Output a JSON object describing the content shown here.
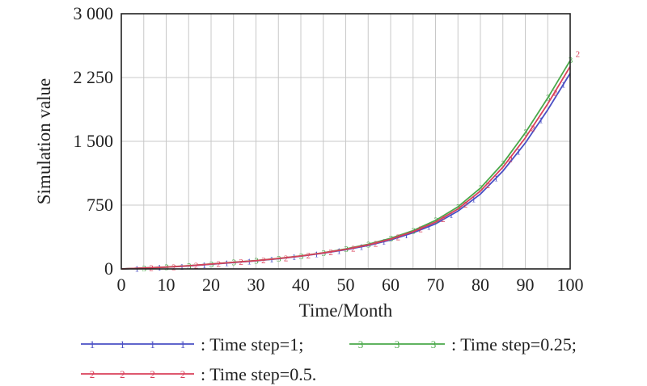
{
  "chart_data": {
    "type": "line",
    "xlabel": "Time/Month",
    "ylabel": "Simulation value",
    "xlim": [
      0,
      100
    ],
    "ylim": [
      0,
      3000
    ],
    "x_ticks": [
      0,
      10,
      20,
      30,
      40,
      50,
      60,
      70,
      80,
      90,
      100
    ],
    "x_tick_labels": [
      "0",
      "10",
      "20",
      "30",
      "40",
      "50",
      "60",
      "70",
      "80",
      "90",
      "100"
    ],
    "y_ticks": [
      0,
      750,
      1500,
      2250,
      3000
    ],
    "y_tick_labels": [
      "0",
      "750",
      "1 500",
      "2 250",
      "3 000"
    ],
    "grid": true,
    "legend_position": "bottom",
    "x": [
      0,
      5,
      10,
      15,
      20,
      25,
      30,
      35,
      40,
      45,
      50,
      55,
      60,
      65,
      70,
      75,
      80,
      85,
      90,
      95,
      100
    ],
    "series": [
      {
        "name": ": Time step=1;",
        "marker": "1",
        "color": "#4a4fc4",
        "values": [
          0,
          10,
          20,
          35,
          55,
          75,
          95,
          120,
          150,
          185,
          225,
          275,
          340,
          425,
          530,
          680,
          880,
          1150,
          1480,
          1870,
          2300
        ]
      },
      {
        "name": ": Time step=0.25;",
        "marker": "3",
        "color": "#4aa84a",
        "values": [
          0,
          10,
          22,
          38,
          58,
          78,
          98,
          123,
          153,
          190,
          235,
          290,
          360,
          450,
          570,
          730,
          950,
          1240,
          1600,
          2010,
          2450
        ]
      },
      {
        "name": ": Time step=0.5.",
        "marker": "2",
        "color": "#d9405a",
        "values": [
          0,
          10,
          21,
          37,
          57,
          77,
          97,
          122,
          152,
          188,
          230,
          283,
          350,
          438,
          550,
          705,
          915,
          1195,
          1540,
          1940,
          2380
        ]
      }
    ]
  }
}
